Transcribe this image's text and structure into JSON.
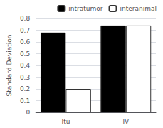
{
  "chart_data": {
    "type": "bar",
    "categories": [
      "Itu",
      "IV"
    ],
    "series": [
      {
        "name": "intratumor",
        "color": "#000000",
        "values": [
          0.68,
          0.74
        ]
      },
      {
        "name": "interanimal",
        "color": "#ffffff",
        "values": [
          0.2,
          0.74
        ]
      }
    ],
    "ylabel": "Standard Deviation",
    "ylim": [
      0,
      0.8
    ],
    "yticks": [
      0,
      0.1,
      0.2,
      0.3,
      0.4,
      0.5,
      0.6,
      0.7,
      0.8
    ],
    "grid": true,
    "legend": "upper right"
  }
}
